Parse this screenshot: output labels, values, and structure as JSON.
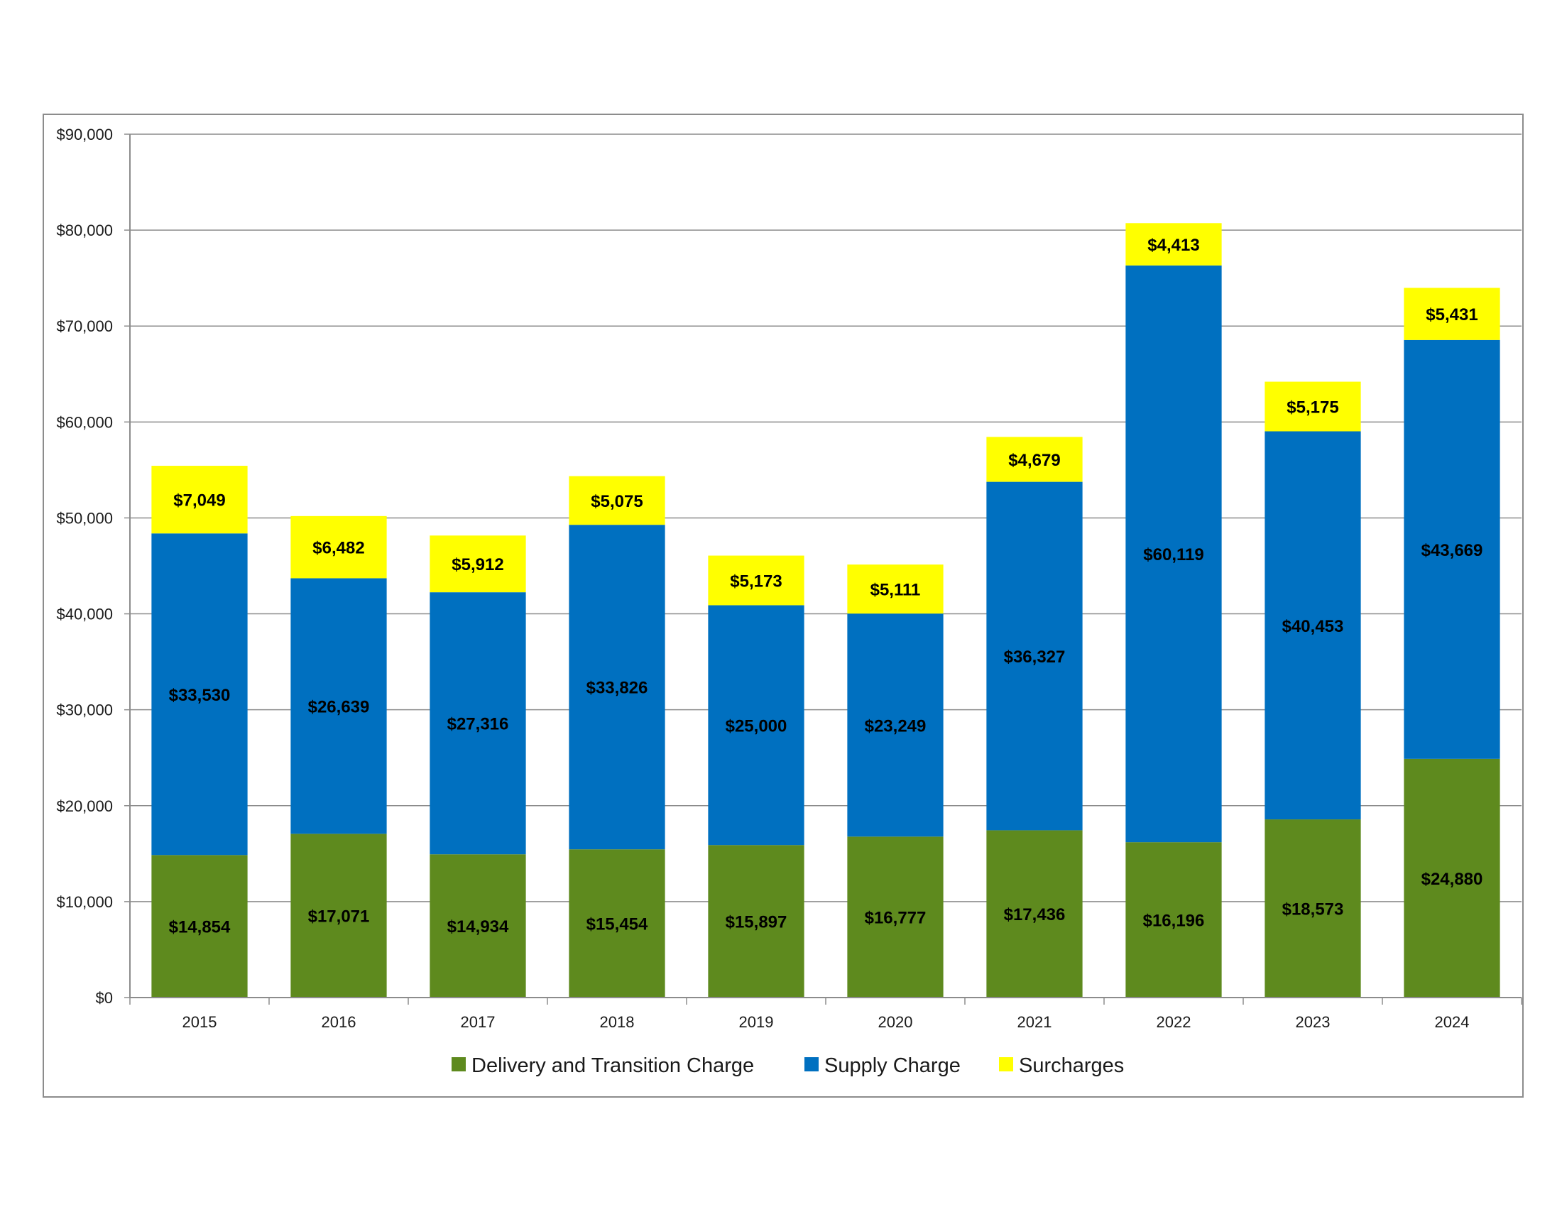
{
  "chart_data": {
    "type": "bar",
    "stacked": true,
    "title": "",
    "xlabel": "",
    "ylabel": "",
    "categories": [
      "2015",
      "2016",
      "2017",
      "2018",
      "2019",
      "2020",
      "2021",
      "2022",
      "2023",
      "2024"
    ],
    "ylim": [
      0,
      90000
    ],
    "ytick_step": 10000,
    "ytick_labels": [
      "$0",
      "$10,000",
      "$20,000",
      "$30,000",
      "$40,000",
      "$50,000",
      "$60,000",
      "$70,000",
      "$80,000",
      "$90,000"
    ],
    "grid": true,
    "legend_position": "bottom",
    "series": [
      {
        "name": "Delivery and Transition Charge",
        "color": "#5E8A1E",
        "values": [
          14854,
          17071,
          14934,
          15454,
          15897,
          16777,
          17436,
          16196,
          18573,
          24880
        ],
        "labels": [
          "$14,854",
          "$17,071",
          "$14,934",
          "$15,454",
          "$15,897",
          "$16,777",
          "$17,436",
          "$16,196",
          "$18,573",
          "$24,880"
        ]
      },
      {
        "name": "Supply Charge",
        "color": "#0070C0",
        "values": [
          33530,
          26639,
          27316,
          33826,
          25000,
          23249,
          36327,
          60119,
          40453,
          43669
        ],
        "labels": [
          "$33,530",
          "$26,639",
          "$27,316",
          "$33,826",
          "$25,000",
          "$23,249",
          "$36,327",
          "$60,119",
          "$40,453",
          "$43,669"
        ]
      },
      {
        "name": "Surcharges",
        "color": "#FFFF00",
        "values": [
          7049,
          6482,
          5912,
          5075,
          5173,
          5111,
          4679,
          4413,
          5175,
          5431
        ],
        "labels": [
          "$7,049",
          "$6,482",
          "$5,912",
          "$5,075",
          "$5,173",
          "$5,111",
          "$4,679",
          "$4,413",
          "$5,175",
          "$5,431"
        ]
      }
    ]
  }
}
